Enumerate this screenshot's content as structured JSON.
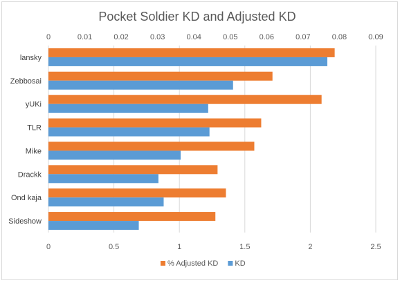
{
  "chart_data": {
    "type": "bar",
    "orientation": "horizontal",
    "title": "Pocket Soldier KD and Adjusted KD",
    "categories": [
      "lansky",
      "Zebbosai",
      "yUKi",
      "TLR",
      "Mike",
      "Drackk",
      "Ond kaja",
      "Sideshow"
    ],
    "series": [
      {
        "name": "% Adjusted KD",
        "axis": "top",
        "color": "#ED7D31",
        "values": [
          0.0787,
          0.0616,
          0.0751,
          0.0585,
          0.0566,
          0.0465,
          0.0488,
          0.0459
        ]
      },
      {
        "name": "KD",
        "axis": "bottom",
        "color": "#5B9BD5",
        "values": [
          2.13,
          1.41,
          1.22,
          1.23,
          1.01,
          0.84,
          0.88,
          0.69
        ]
      }
    ],
    "top_axis": {
      "min": 0,
      "max": 0.09,
      "ticks": [
        "0",
        "0.01",
        "0.02",
        "0.03",
        "0.04",
        "0.05",
        "0.06",
        "0.07",
        "0.08",
        "0.09"
      ]
    },
    "bottom_axis": {
      "min": 0,
      "max": 2.5,
      "ticks": [
        "0",
        "0.5",
        "1",
        "1.5",
        "2",
        "2.5"
      ]
    },
    "grid": true,
    "legend": "bottom"
  }
}
